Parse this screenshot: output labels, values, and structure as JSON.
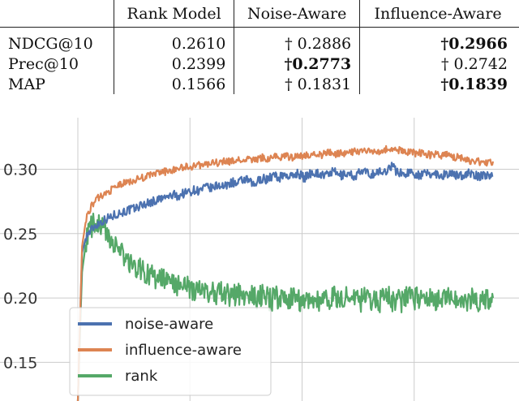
{
  "table": {
    "headers": [
      "",
      "Rank Model",
      "Noise-Aware",
      "Influence-Aware"
    ],
    "rows": [
      {
        "metric": "NDCG@10",
        "rank": "0.2610",
        "noise": "† 0.2886",
        "noise_bold": false,
        "influence": "†0.2966",
        "influence_bold": true
      },
      {
        "metric": "Prec@10",
        "rank": "0.2399",
        "noise": "†0.2773",
        "noise_bold": true,
        "influence": "† 0.2742",
        "influence_bold": false
      },
      {
        "metric": "MAP",
        "rank": "0.1566",
        "noise": "† 0.1831",
        "noise_bold": false,
        "influence": "†0.1839",
        "influence_bold": true
      }
    ]
  },
  "chart_data": {
    "type": "line",
    "ylim": [
      0.12,
      0.34
    ],
    "xlim": [
      0,
      100
    ],
    "yticks": [
      "0.15",
      "0.20",
      "0.25",
      "0.30"
    ],
    "ytick_values": [
      0.15,
      0.2,
      0.25,
      0.3
    ],
    "xgrid_at": [
      0,
      27,
      54,
      81
    ],
    "n_points": 100,
    "legend_position": "lower-left",
    "series": [
      {
        "name": "noise-aware",
        "color": "#4c72b0",
        "values": [
          0.12,
          0.235,
          0.248,
          0.252,
          0.256,
          0.258,
          0.26,
          0.262,
          0.263,
          0.265,
          0.266,
          0.267,
          0.268,
          0.269,
          0.27,
          0.272,
          0.273,
          0.274,
          0.275,
          0.276,
          0.277,
          0.278,
          0.279,
          0.28,
          0.279,
          0.281,
          0.282,
          0.283,
          0.284,
          0.283,
          0.285,
          0.286,
          0.285,
          0.287,
          0.288,
          0.286,
          0.289,
          0.29,
          0.288,
          0.291,
          0.292,
          0.29,
          0.287,
          0.291,
          0.293,
          0.292,
          0.294,
          0.295,
          0.293,
          0.296,
          0.295,
          0.294,
          0.297,
          0.296,
          0.293,
          0.296,
          0.298,
          0.297,
          0.296,
          0.295,
          0.297,
          0.298,
          0.296,
          0.295,
          0.297,
          0.296,
          0.294,
          0.297,
          0.298,
          0.297,
          0.296,
          0.297,
          0.298,
          0.297,
          0.301,
          0.303,
          0.298,
          0.297,
          0.296,
          0.298,
          0.297,
          0.296,
          0.295,
          0.297,
          0.296,
          0.297,
          0.296,
          0.295,
          0.297,
          0.296,
          0.295,
          0.296,
          0.295,
          0.297,
          0.296,
          0.295,
          0.294,
          0.296,
          0.295,
          0.295
        ]
      },
      {
        "name": "influence-aware",
        "color": "#dd8452",
        "values": [
          0.12,
          0.24,
          0.262,
          0.27,
          0.275,
          0.278,
          0.28,
          0.282,
          0.284,
          0.286,
          0.288,
          0.289,
          0.29,
          0.291,
          0.292,
          0.293,
          0.294,
          0.295,
          0.296,
          0.297,
          0.298,
          0.298,
          0.299,
          0.3,
          0.301,
          0.301,
          0.302,
          0.302,
          0.303,
          0.303,
          0.304,
          0.304,
          0.305,
          0.305,
          0.305,
          0.306,
          0.306,
          0.306,
          0.307,
          0.307,
          0.307,
          0.308,
          0.307,
          0.308,
          0.309,
          0.308,
          0.309,
          0.31,
          0.309,
          0.31,
          0.31,
          0.309,
          0.311,
          0.311,
          0.31,
          0.311,
          0.312,
          0.312,
          0.311,
          0.312,
          0.313,
          0.312,
          0.312,
          0.313,
          0.312,
          0.313,
          0.314,
          0.313,
          0.314,
          0.314,
          0.313,
          0.315,
          0.314,
          0.315,
          0.316,
          0.315,
          0.314,
          0.315,
          0.314,
          0.313,
          0.313,
          0.312,
          0.313,
          0.312,
          0.311,
          0.312,
          0.311,
          0.31,
          0.311,
          0.31,
          0.309,
          0.31,
          0.308,
          0.307,
          0.306,
          0.307,
          0.305,
          0.306,
          0.305,
          0.306
        ]
      },
      {
        "name": "rank",
        "color": "#55a868",
        "values": [
          0.12,
          0.22,
          0.245,
          0.255,
          0.258,
          0.256,
          0.254,
          0.25,
          0.246,
          0.24,
          0.236,
          0.232,
          0.228,
          0.226,
          0.224,
          0.222,
          0.22,
          0.218,
          0.216,
          0.215,
          0.214,
          0.213,
          0.212,
          0.211,
          0.21,
          0.209,
          0.208,
          0.207,
          0.206,
          0.206,
          0.205,
          0.204,
          0.205,
          0.203,
          0.204,
          0.202,
          0.203,
          0.201,
          0.204,
          0.202,
          0.2,
          0.203,
          0.201,
          0.199,
          0.202,
          0.2,
          0.198,
          0.201,
          0.199,
          0.2,
          0.198,
          0.201,
          0.199,
          0.197,
          0.2,
          0.198,
          0.201,
          0.199,
          0.197,
          0.2,
          0.198,
          0.202,
          0.199,
          0.197,
          0.201,
          0.198,
          0.2,
          0.197,
          0.199,
          0.201,
          0.198,
          0.2,
          0.197,
          0.199,
          0.202,
          0.198,
          0.2,
          0.197,
          0.199,
          0.201,
          0.198,
          0.2,
          0.197,
          0.199,
          0.201,
          0.198,
          0.2,
          0.197,
          0.199,
          0.201,
          0.198,
          0.2,
          0.196,
          0.199,
          0.201,
          0.197,
          0.199,
          0.198,
          0.2,
          0.2
        ]
      }
    ]
  }
}
